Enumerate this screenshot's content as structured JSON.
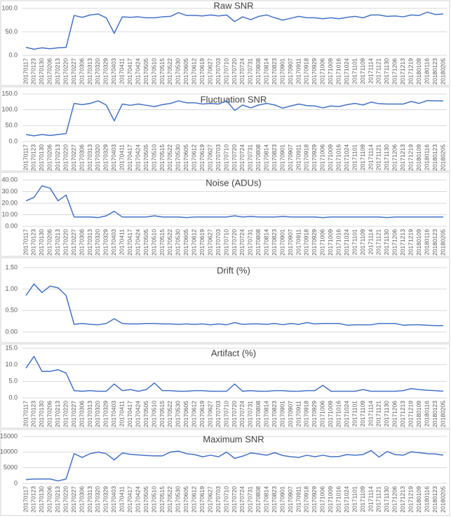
{
  "chart_data": [
    {
      "type": "line",
      "title": "Raw SNR",
      "color": "#4472c4",
      "grid": true,
      "categories": [
        "20170117",
        "20170123",
        "20170130",
        "20170206",
        "20170213",
        "20170220",
        "20170227",
        "20170306",
        "20170313",
        "20170320",
        "20170329",
        "20170403",
        "20170411",
        "20170417",
        "20170424",
        "20170505",
        "20170510",
        "20170515",
        "20170522",
        "20170530",
        "20170605",
        "20170612",
        "20170619",
        "20170627",
        "20170703",
        "20170710",
        "20170720",
        "20170724",
        "20170731",
        "20170808",
        "20170814",
        "20170823",
        "20170901",
        "20170907",
        "20170911",
        "20170918",
        "20170929",
        "20171006",
        "20171009",
        "20171016",
        "20171024",
        "20171101",
        "20171109",
        "20171114",
        "20171121",
        "20171130",
        "20171206",
        "20171213",
        "20171219",
        "20180109",
        "20180116",
        "20180123",
        "20180205"
      ],
      "values": [
        17,
        13,
        16,
        14,
        16,
        17,
        85,
        81,
        86,
        88,
        80,
        47,
        82,
        81,
        82,
        80,
        80,
        82,
        83,
        91,
        85,
        85,
        84,
        86,
        84,
        86,
        72,
        82,
        76,
        83,
        86,
        80,
        75,
        79,
        83,
        80,
        80,
        78,
        80,
        78,
        81,
        83,
        80,
        86,
        86,
        83,
        84,
        82,
        86,
        85,
        92,
        87,
        88
      ],
      "ylim": [
        0,
        100
      ],
      "yticks": [
        {
          "value": 0,
          "label": "0.0"
        },
        {
          "value": 50,
          "label": "50.0"
        },
        {
          "value": 100,
          "label": "100.0"
        }
      ]
    },
    {
      "type": "line",
      "title": "Fluctuation SNR",
      "color": "#4472c4",
      "grid": true,
      "categories": [
        "20170117",
        "20170123",
        "20170130",
        "20170206",
        "20170213",
        "20170220",
        "20170227",
        "20170306",
        "20170313",
        "20170320",
        "20170329",
        "20170403",
        "20170411",
        "20170417",
        "20170424",
        "20170505",
        "20170510",
        "20170515",
        "20170522",
        "20170530",
        "20170605",
        "20170612",
        "20170619",
        "20170627",
        "20170703",
        "20170710",
        "20170720",
        "20170724",
        "20170731",
        "20170808",
        "20170814",
        "20170823",
        "20170901",
        "20170907",
        "20170911",
        "20170918",
        "20170929",
        "20171006",
        "20171009",
        "20171016",
        "20171024",
        "20171101",
        "20171109",
        "20171114",
        "20171121",
        "20171130",
        "20171206",
        "20171213",
        "20171219",
        "20180109",
        "20180116",
        "20180123",
        "20180205"
      ],
      "values": [
        22,
        18,
        22,
        19,
        22,
        25,
        120,
        116,
        120,
        128,
        115,
        65,
        118,
        114,
        118,
        114,
        110,
        116,
        120,
        128,
        122,
        122,
        118,
        120,
        118,
        128,
        98,
        115,
        106,
        115,
        120,
        115,
        105,
        112,
        118,
        113,
        112,
        106,
        112,
        110,
        116,
        120,
        115,
        124,
        119,
        118,
        118,
        118,
        126,
        120,
        129,
        128,
        128
      ],
      "ylim": [
        0,
        150
      ],
      "yticks": [
        {
          "value": 0,
          "label": "0.0"
        },
        {
          "value": 50,
          "label": "50.0"
        },
        {
          "value": 100,
          "label": "100.0"
        },
        {
          "value": 150,
          "label": "150.0"
        }
      ]
    },
    {
      "type": "line",
      "title": "Noise (ADUs)",
      "color": "#4472c4",
      "grid": true,
      "categories": [
        "20170117",
        "20170123",
        "20170130",
        "20170206",
        "20170213",
        "20170220",
        "20170227",
        "20170306",
        "20170313",
        "20170320",
        "20170329",
        "20170403",
        "20170411",
        "20170417",
        "20170424",
        "20170505",
        "20170510",
        "20170515",
        "20170522",
        "20170530",
        "20170605",
        "20170612",
        "20170619",
        "20170627",
        "20170703",
        "20170710",
        "20170720",
        "20170724",
        "20170731",
        "20170808",
        "20170814",
        "20170823",
        "20170901",
        "20170907",
        "20170911",
        "20170918",
        "20170929",
        "20171006",
        "20171009",
        "20171016",
        "20171024",
        "20171101",
        "20171109",
        "20171114",
        "20171121",
        "20171130",
        "20171206",
        "20171213",
        "20171219",
        "20180109",
        "20180116",
        "20180123",
        "20180205"
      ],
      "values": [
        22,
        25,
        35,
        33,
        22,
        27,
        8,
        8,
        8,
        7.5,
        9,
        13,
        8,
        8,
        8,
        8,
        9,
        8,
        8,
        8,
        7.5,
        8,
        8,
        8,
        8,
        8,
        9,
        8,
        8.5,
        8,
        8,
        8,
        8.5,
        8,
        8,
        8,
        8,
        7.5,
        8,
        8,
        8,
        8,
        8,
        8,
        8,
        7.5,
        8,
        8,
        8,
        8,
        8,
        8,
        8
      ],
      "ylim": [
        0,
        40
      ],
      "yticks": [
        {
          "value": 0,
          "label": "0.00"
        },
        {
          "value": 10,
          "label": "10.00"
        },
        {
          "value": 20,
          "label": "20.00"
        },
        {
          "value": 30,
          "label": "30.00"
        },
        {
          "value": 40,
          "label": "40.00"
        }
      ]
    },
    {
      "type": "line",
      "title": "Drift (%)",
      "color": "#4472c4",
      "grid": true,
      "categories": [
        null,
        null,
        null,
        null,
        null,
        null,
        null,
        null,
        null,
        null,
        null,
        null,
        null,
        null,
        null,
        null,
        null,
        null,
        null,
        null,
        null,
        null,
        null,
        null,
        null,
        null,
        null,
        null,
        null,
        null,
        null,
        null,
        null,
        null,
        null,
        null,
        null,
        null,
        null,
        null,
        null,
        null,
        null,
        null,
        null,
        null,
        null,
        null,
        null,
        null,
        null,
        null,
        null
      ],
      "values": [
        0.85,
        1.12,
        0.92,
        1.07,
        1.03,
        0.85,
        0.18,
        0.2,
        0.18,
        0.17,
        0.2,
        0.31,
        0.2,
        0.19,
        0.19,
        0.2,
        0.2,
        0.19,
        0.19,
        0.18,
        0.19,
        0.18,
        0.19,
        0.17,
        0.19,
        0.17,
        0.22,
        0.18,
        0.19,
        0.19,
        0.18,
        0.2,
        0.17,
        0.2,
        0.18,
        0.22,
        0.19,
        0.2,
        0.2,
        0.2,
        0.16,
        0.17,
        0.17,
        0.17,
        0.2,
        0.2,
        0.2,
        0.16,
        0.17,
        0.17,
        0.16,
        0.15,
        0.15
      ],
      "ylim": [
        0,
        1.5
      ],
      "yticks": [
        {
          "value": 0,
          "label": "0.00"
        },
        {
          "value": 0.5,
          "label": "0.50"
        },
        {
          "value": 1,
          "label": "1.00"
        },
        {
          "value": 1.5,
          "label": "1.50"
        }
      ]
    },
    {
      "type": "line",
      "title": "Artifact (%)",
      "color": "#4472c4",
      "grid": true,
      "categories": [
        "20170117",
        "20170123",
        "20170130",
        "20170206",
        "20170213",
        "20170220",
        "20170227",
        "20170306",
        "20170313",
        "20170320",
        "20170329",
        "20170403",
        "20170411",
        "20170417",
        "20170424",
        "20170505",
        "20170510",
        "20170515",
        "20170522",
        "20170530",
        "20170605",
        "20170612",
        "20170619",
        "20170627",
        "20170703",
        "20170710",
        "20170720",
        "20170724",
        "20170731",
        "20170808",
        "20170814",
        "20170823",
        "20170901",
        "20170907",
        "20170911",
        "20170918",
        "20170929",
        "20171006",
        "20171009",
        "20171016",
        "20171024",
        "20171101",
        "20171109",
        "20171114",
        "20171121",
        "20171130",
        "20171206",
        "20171213",
        "20171219",
        "20180109",
        "20180116",
        "20180123",
        "20180205"
      ],
      "values": [
        9,
        12.5,
        8,
        8,
        8.5,
        7.5,
        2.2,
        2,
        2.2,
        2,
        2,
        4.2,
        2.2,
        2.5,
        2,
        2.5,
        4.5,
        2.2,
        2.2,
        2,
        2,
        2.2,
        2.2,
        2,
        2,
        2,
        4.2,
        2,
        2.2,
        2,
        2,
        2.2,
        2.2,
        2,
        2,
        2.2,
        2.2,
        3.8,
        2,
        2,
        2,
        2,
        2.5,
        2,
        2,
        2,
        2,
        2.2,
        2.8,
        2.5,
        2.3,
        2.2,
        2
      ],
      "ylim": [
        0,
        15
      ],
      "yticks": [
        {
          "value": 0,
          "label": "0.0"
        },
        {
          "value": 5,
          "label": "5.0"
        },
        {
          "value": 10,
          "label": "10.0"
        },
        {
          "value": 15,
          "label": "15.0"
        }
      ]
    },
    {
      "type": "line",
      "title": "Maximum SNR",
      "color": "#4472c4",
      "grid": true,
      "categories": [
        "20170117",
        "20170123",
        "20170130",
        "20170206",
        "20170213",
        "20170220",
        "20170227",
        "20170306",
        "20170313",
        "20170320",
        "20170329",
        "20170403",
        "20170411",
        "20170417",
        "20170424",
        "20170505",
        "20170510",
        "20170515",
        "20170522",
        "20170530",
        "20170605",
        "20170612",
        "20170619",
        "20170627",
        "20170703",
        "20170710",
        "20170720",
        "20170724",
        "20170731",
        "20170808",
        "20170814",
        "20170823",
        "20170901",
        "20170907",
        "20170911",
        "20170918",
        "20170929",
        "20171006",
        "20171009",
        "20171016",
        "20171024",
        "20171101",
        "20171109",
        "20171114",
        "20171121",
        "20171130",
        "20171206",
        "20171213",
        "20171219",
        "20180109",
        "20180116",
        "20180123",
        "20180205"
      ],
      "values": [
        1200,
        1400,
        1400,
        1400,
        800,
        1400,
        9500,
        8300,
        9500,
        10000,
        9500,
        7500,
        9700,
        9300,
        9100,
        8900,
        8800,
        8800,
        10000,
        10300,
        9500,
        9200,
        8500,
        9000,
        8500,
        10000,
        8000,
        8700,
        9700,
        9400,
        9000,
        9800,
        8900,
        8500,
        8300,
        9000,
        8500,
        9000,
        8500,
        8600,
        9200,
        9000,
        9200,
        10500,
        8400,
        10200,
        9200,
        9000,
        10100,
        9800,
        9500,
        9400,
        9000
      ],
      "ylim": [
        0,
        15000
      ],
      "yticks": [
        0,
        5000,
        10000,
        15000
      ]
    }
  ]
}
